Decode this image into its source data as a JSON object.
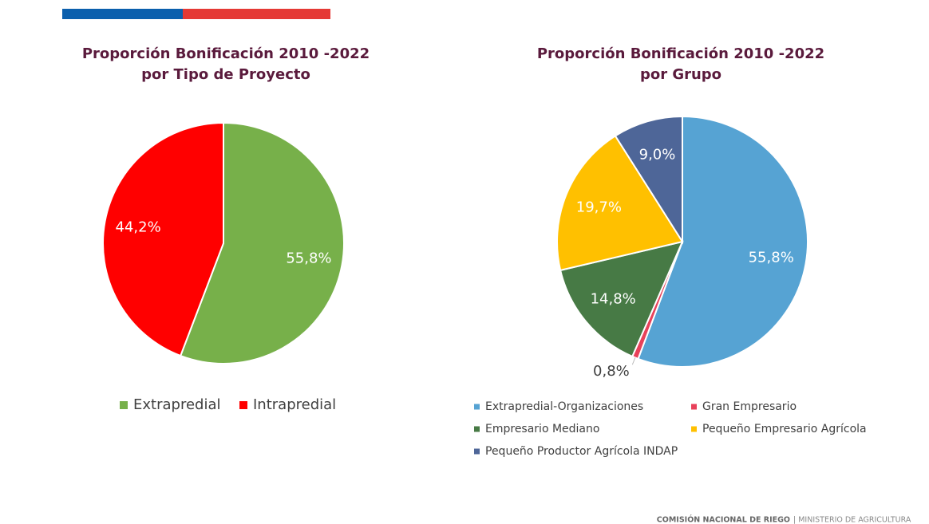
{
  "chart_data": [
    {
      "type": "pie",
      "title": [
        "Proporción Bonificación 2010 -2022",
        "por Tipo de Proyecto"
      ],
      "series": [
        {
          "name": "Extrapredial",
          "color": "#77b04a",
          "values": [
            55.8
          ],
          "value_labels": [
            "55,8%"
          ]
        },
        {
          "name": "Intrapredial",
          "color": "#ff0000",
          "values": [
            44.2
          ],
          "value_labels": [
            "44,2%"
          ]
        }
      ]
    },
    {
      "type": "pie",
      "title": [
        "Proporción Bonificación 2010 -2022",
        "por Grupo"
      ],
      "series": [
        {
          "name": "Extrapredial-Organizaciones",
          "color": "#56a3d3",
          "values": [
            55.8
          ],
          "value_labels": [
            "55,8%"
          ]
        },
        {
          "name": "Gran Empresario",
          "color": "#e8415a",
          "values": [
            0.8
          ],
          "value_labels": [
            "0,8%"
          ]
        },
        {
          "name": "Empresario Mediano",
          "color": "#477a45",
          "values": [
            14.8
          ],
          "value_labels": [
            "14,8%"
          ]
        },
        {
          "name": "Pequeño Empresario Agrícola",
          "color": "#ffc000",
          "values": [
            19.7
          ],
          "value_labels": [
            "19,7%"
          ]
        },
        {
          "name": "Pequeño Productor Agrícola INDAP",
          "color": "#4e6698",
          "values": [
            9.0
          ],
          "value_labels": [
            "9,0%"
          ]
        }
      ]
    }
  ],
  "footer": {
    "org": "COMISIÓN NACIONAL DE RIEGO",
    "ministry": "| MINISTERIO DE AGRICULTURA"
  }
}
